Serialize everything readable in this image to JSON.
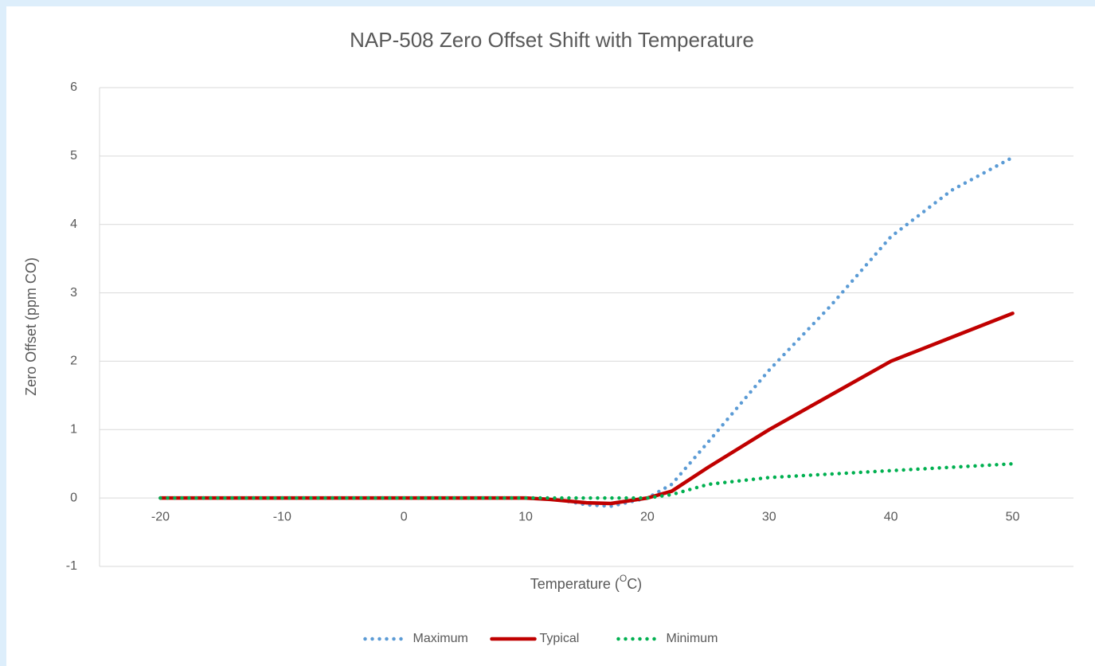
{
  "chart_data": {
    "type": "line",
    "title": "NAP-508 Zero Offset Shift with Temperature",
    "xlabel": [
      "Temperature (",
      "O",
      "C)"
    ],
    "ylabel": "Zero Offset (ppm CO)",
    "x": [
      -20,
      -10,
      0,
      10,
      12,
      15,
      17,
      20,
      22,
      25,
      30,
      35,
      40,
      45,
      50
    ],
    "series": [
      {
        "name": "Maximum",
        "color": "#5b9bd5",
        "style": "dotted",
        "values": [
          0,
          0,
          0,
          0,
          0,
          -0.1,
          -0.12,
          0,
          0.2,
          0.82,
          1.87,
          2.8,
          3.82,
          4.5,
          4.98
        ]
      },
      {
        "name": "Typical",
        "color": "#c00000",
        "style": "solid",
        "values": [
          0,
          0,
          0,
          0,
          -0.02,
          -0.07,
          -0.08,
          0,
          0.1,
          0.45,
          1.0,
          1.5,
          2.0,
          2.35,
          2.7
        ]
      },
      {
        "name": "Minimum",
        "color": "#00b050",
        "style": "dotted",
        "values": [
          0,
          0,
          0,
          0,
          0,
          0,
          0,
          0,
          0.05,
          0.2,
          0.3,
          0.35,
          0.4,
          0.45,
          0.5
        ]
      }
    ],
    "xlim": [
      -25,
      55
    ],
    "xticks": [
      -20,
      -10,
      0,
      10,
      20,
      30,
      40,
      50
    ],
    "ylim": [
      -1,
      6
    ],
    "yticks": [
      -1,
      0,
      1,
      2,
      3,
      4,
      5,
      6
    ],
    "grid": true,
    "legend": "bottom"
  }
}
